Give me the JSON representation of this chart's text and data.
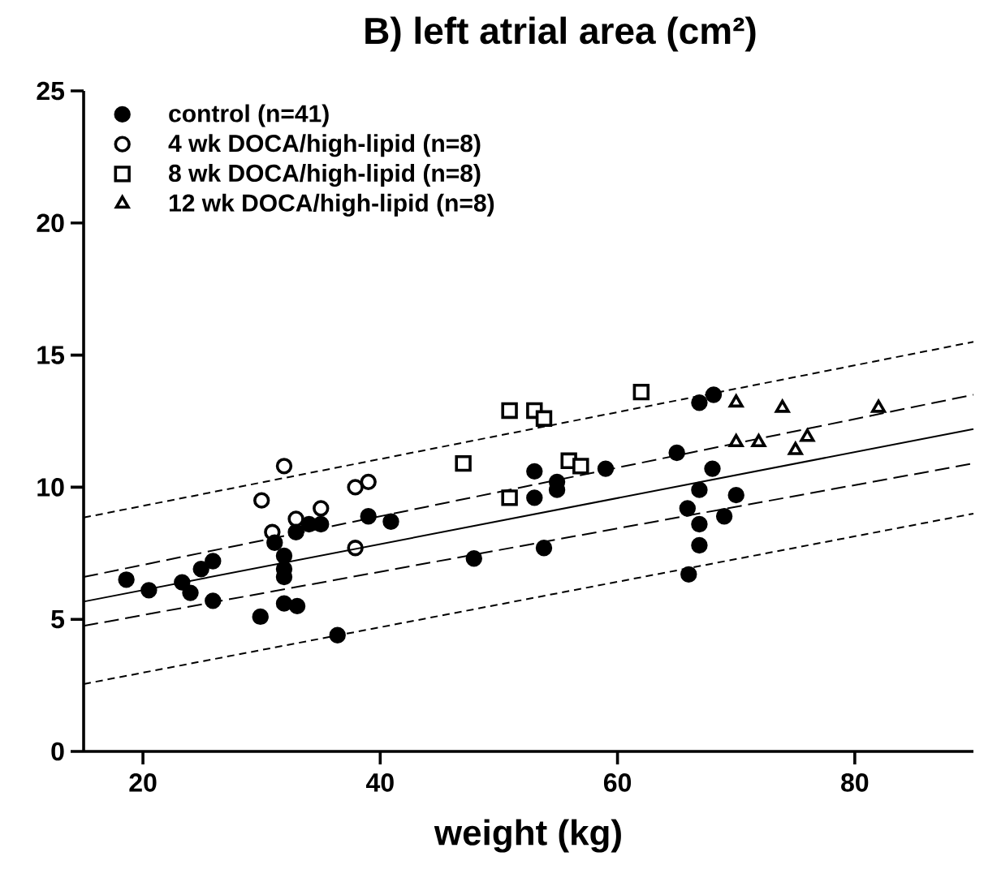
{
  "chart_data": {
    "type": "scatter",
    "title": "B) left atrial area (cm²)",
    "xlabel": "weight (kg)",
    "xlim": [
      15,
      90
    ],
    "ylim": [
      0,
      25
    ],
    "xticks": [
      20,
      40,
      60,
      80
    ],
    "yticks": [
      0,
      5,
      10,
      15,
      20,
      25
    ],
    "grid": false,
    "legend": "top left",
    "series": [
      {
        "name": "control (n=41)",
        "color": "#000000",
        "marker": "circle",
        "x": [
          18.6,
          20.5,
          23.3,
          24.0,
          24.9,
          25.9,
          25.9,
          29.9,
          31.9,
          31.9,
          31.9,
          31.9,
          33.0,
          32.9,
          34.0,
          35.0,
          36.4,
          39.0,
          40.9,
          47.9,
          53.0,
          53.0,
          53.8,
          54.9,
          54.9,
          59.0,
          65.0,
          66.9,
          68.1,
          65.9,
          66.9,
          68.0,
          66.9,
          66.9,
          66.0,
          69.0,
          70.0,
          31.1
        ],
        "values": [
          6.5,
          6.1,
          6.4,
          6.0,
          6.9,
          7.2,
          5.7,
          5.1,
          7.4,
          6.9,
          6.6,
          5.6,
          5.5,
          8.3,
          8.6,
          8.6,
          4.4,
          8.9,
          8.7,
          7.3,
          10.6,
          9.6,
          7.7,
          10.2,
          9.9,
          10.7,
          11.3,
          13.2,
          13.5,
          9.2,
          9.9,
          10.7,
          8.6,
          7.8,
          6.7,
          8.9,
          9.7,
          7.9
        ]
      },
      {
        "name": "4 wk DOCA/high-lipid (n=8)",
        "color": "#000000",
        "marker": "circle open",
        "x": [
          30.0,
          30.9,
          31.9,
          32.9,
          35.0,
          37.9,
          39.0,
          37.9
        ],
        "values": [
          9.5,
          8.3,
          10.8,
          8.8,
          9.2,
          10.0,
          10.2,
          7.7
        ]
      },
      {
        "name": "8 wk DOCA/high-lipid (n=8)",
        "color": "#000000",
        "marker": "square",
        "x": [
          47.0,
          50.9,
          53.0,
          53.8,
          55.9,
          56.9,
          50.9,
          62.0
        ],
        "values": [
          10.9,
          12.9,
          12.9,
          12.6,
          11.0,
          10.8,
          9.6,
          13.6
        ]
      },
      {
        "name": "12 wk DOCA/high-lipid (n=8)",
        "color": "#000000",
        "marker": "triangle",
        "x": [
          70.0,
          73.9,
          82.0,
          70.0,
          71.9,
          76.0,
          75.0
        ],
        "values": [
          13.2,
          13.0,
          13.0,
          11.7,
          11.7,
          11.9,
          11.4
        ]
      },
      {
        "type": "line",
        "color": "#000000",
        "marker": "none",
        "line_style": "solid",
        "x": [
          15,
          90
        ],
        "values": [
          5.67,
          12.2
        ]
      },
      {
        "type": "line",
        "color": "#000000",
        "marker": "none",
        "line_style": "dashed",
        "x": [
          15,
          90
        ],
        "values": [
          6.6,
          13.5
        ]
      },
      {
        "type": "line",
        "color": "#000000",
        "marker": "none",
        "line_style": "dashed",
        "x": [
          15,
          90
        ],
        "values": [
          4.75,
          10.9
        ]
      },
      {
        "type": "line",
        "color": "#000000",
        "marker": "none",
        "line_style": "dotted",
        "x": [
          15,
          90
        ],
        "values": [
          8.85,
          15.5
        ]
      },
      {
        "type": "line",
        "color": "#000000",
        "marker": "none",
        "line_style": "dotted",
        "x": [
          15,
          90
        ],
        "values": [
          2.55,
          9.0
        ]
      }
    ]
  }
}
